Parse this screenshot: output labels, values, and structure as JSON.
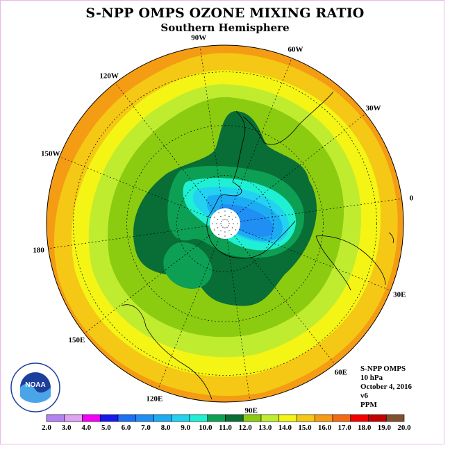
{
  "title": "S-NPP OMPS OZONE MIXING RATIO",
  "subtitle": "Southern Hemisphere",
  "longitude_labels": [
    {
      "text": "90W",
      "lon": -90
    },
    {
      "text": "60W",
      "lon": -60
    },
    {
      "text": "30W",
      "lon": -30
    },
    {
      "text": "0",
      "lon": 0
    },
    {
      "text": "30E",
      "lon": 30
    },
    {
      "text": "60E",
      "lon": 60
    },
    {
      "text": "90E",
      "lon": 90
    },
    {
      "text": "120E",
      "lon": 120
    },
    {
      "text": "150E",
      "lon": 150
    },
    {
      "text": "180",
      "lon": 180
    },
    {
      "text": "150W",
      "lon": -150
    },
    {
      "text": "120W",
      "lon": -120
    }
  ],
  "info": {
    "instrument": "S-NPP OMPS",
    "level": "10 hPa",
    "date": "October 4, 2016",
    "version": "v6",
    "units": "PPM"
  },
  "logo": {
    "text": "NOAA",
    "icon": "noaa-logo"
  },
  "colorbar": {
    "labels": [
      "2.0",
      "3.0",
      "4.0",
      "5.0",
      "6.0",
      "7.0",
      "8.0",
      "9.0",
      "10.0",
      "11.0",
      "12.0",
      "13.0",
      "14.0",
      "15.0",
      "16.0",
      "17.0",
      "18.0",
      "19.0",
      "20.0"
    ],
    "colors": [
      "#b383f4",
      "#e0a3f4",
      "#f400f4",
      "#1818ef",
      "#1d6ff4",
      "#1f8ff4",
      "#1cacf4",
      "#22d2f0",
      "#1ff0d4",
      "#0da055",
      "#086e36",
      "#8ccc10",
      "#c0ec30",
      "#f4f415",
      "#f4c814",
      "#f49c14",
      "#f46a14",
      "#f40000",
      "#c40000",
      "#805030"
    ]
  },
  "chart_data": {
    "type": "heatmap",
    "title": "S-NPP OMPS OZONE MIXING RATIO",
    "subtitle": "Southern Hemisphere",
    "units": "PPM",
    "projection": "south polar stereographic",
    "level": "10 hPa",
    "date": "October 4, 2016",
    "contour_levels": [
      2,
      3,
      4,
      5,
      6,
      7,
      8,
      9,
      10,
      11,
      12,
      13,
      14,
      15,
      16,
      17,
      18,
      19,
      20
    ],
    "fields": [
      {
        "range": [
          16,
          18
        ],
        "region": "outer band (mid-latitudes)"
      },
      {
        "range": [
          15,
          16
        ],
        "region": "subtropical ring"
      },
      {
        "range": [
          13,
          15
        ],
        "region": "mid-latitude ring"
      },
      {
        "range": [
          11,
          12
        ],
        "region": "vortex edge"
      },
      {
        "range": [
          9,
          11
        ],
        "region": "polar vortex"
      },
      {
        "range": [
          6,
          9
        ],
        "region": "vortex core"
      }
    ]
  }
}
